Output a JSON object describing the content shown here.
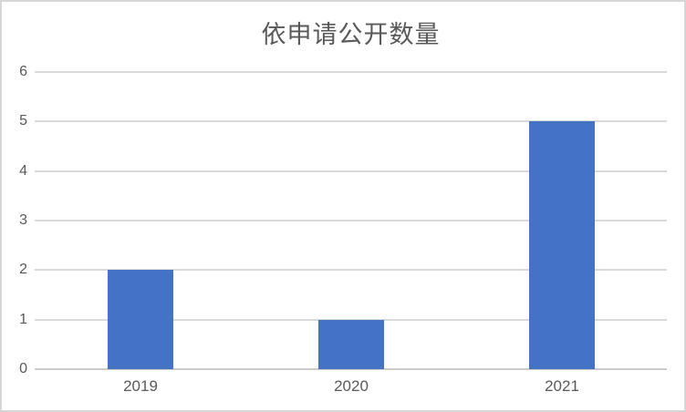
{
  "colors": {
    "bar": "#4472C4",
    "gridline": "#D9D9D9",
    "axis_line": "#CCCCCC",
    "text": "#595959",
    "border": "#D6D6D6",
    "background": "#FFFFFF"
  },
  "chart_data": {
    "type": "bar",
    "title": "依申请公开数量",
    "categories": [
      "2019",
      "2020",
      "2021"
    ],
    "values": [
      2,
      1,
      5
    ],
    "series": [
      {
        "name": "依申请公开数量",
        "values": [
          2,
          1,
          5
        ]
      }
    ],
    "xlabel": "",
    "ylabel": "",
    "ylim": [
      0,
      6
    ],
    "yticks": [
      0,
      1,
      2,
      3,
      4,
      5,
      6
    ],
    "grid": true,
    "legend": false,
    "bar_orientation": "vertical"
  }
}
